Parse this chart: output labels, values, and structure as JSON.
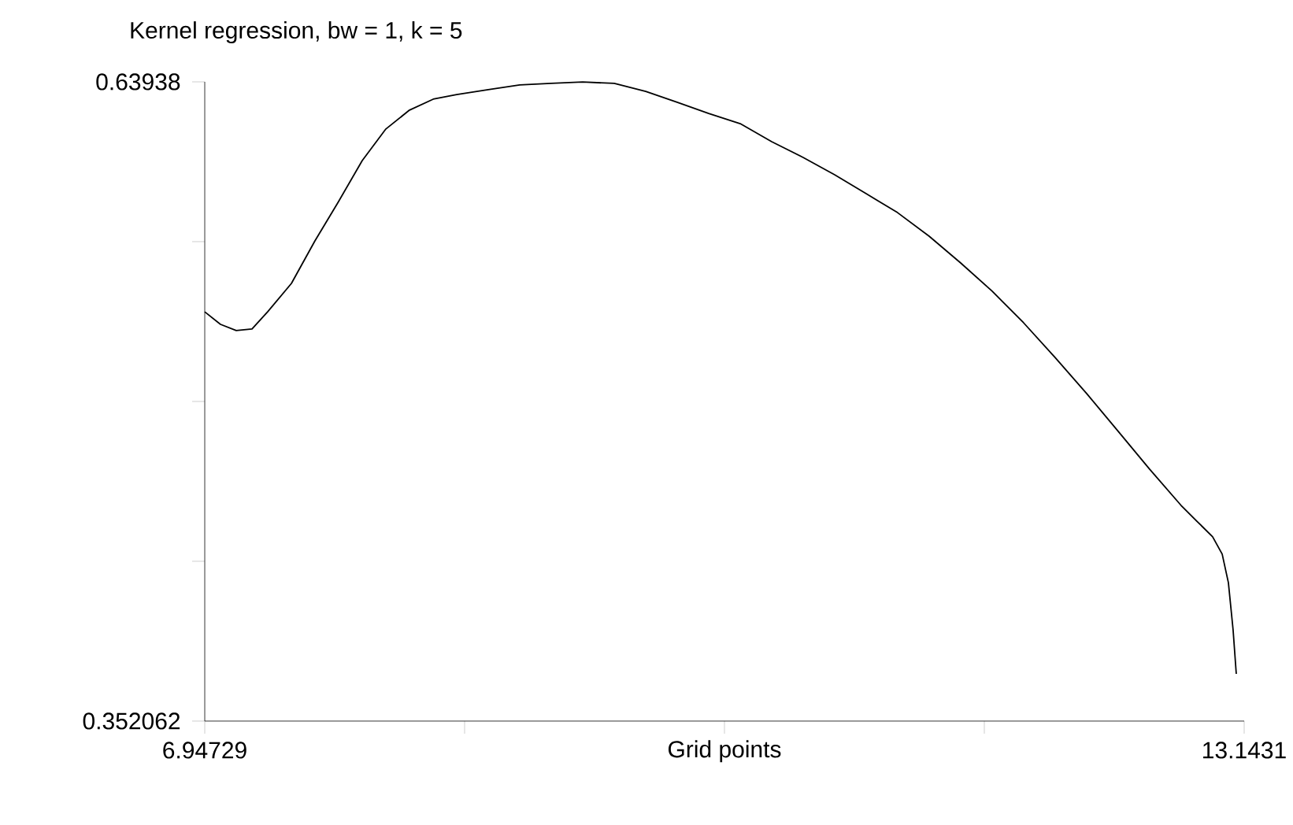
{
  "chart_data": {
    "type": "line",
    "title": "Kernel regression, bw = 1, k = 5",
    "xlabel": "Grid points",
    "x": [
      6.9473,
      7.041,
      7.135,
      7.229,
      7.323,
      7.464,
      7.604,
      7.745,
      7.886,
      8.027,
      8.168,
      8.309,
      8.449,
      8.637,
      8.825,
      9.012,
      9.2,
      9.388,
      9.576,
      9.763,
      9.951,
      10.139,
      10.327,
      10.514,
      10.702,
      10.89,
      11.077,
      11.265,
      11.453,
      11.641,
      11.828,
      12.016,
      12.204,
      12.392,
      12.579,
      12.767,
      12.861,
      12.955,
      13.012,
      13.049,
      13.077,
      13.096
    ],
    "series": [
      {
        "color": "#000000",
        "values": [
          0.536,
          0.5304,
          0.5276,
          0.5283,
          0.5361,
          0.5488,
          0.5679,
          0.5856,
          0.604,
          0.6182,
          0.6267,
          0.6316,
          0.6337,
          0.6359,
          0.638,
          0.6387,
          0.6393,
          0.6387,
          0.6351,
          0.6302,
          0.6252,
          0.6206,
          0.6125,
          0.6054,
          0.5976,
          0.5891,
          0.5806,
          0.57,
          0.558,
          0.5453,
          0.5311,
          0.5155,
          0.4993,
          0.4823,
          0.4653,
          0.449,
          0.4419,
          0.4349,
          0.4271,
          0.4143,
          0.3931,
          0.3733
        ]
      }
    ],
    "xlim": [
      6.94729,
      13.1431
    ],
    "xticks": [
      6.94729,
      {
        "value": 8.496243,
        "label": null
      },
      {
        "value": 10.0452,
        "label": null
      },
      {
        "value": 11.594158,
        "label": null
      },
      13.1431
    ],
    "ylim": [
      0.352062,
      0.63938
    ],
    "yticks": [
      0.352062,
      {
        "value": 0.4238915,
        "label": null
      },
      {
        "value": 0.495721,
        "label": null
      },
      {
        "value": 0.5675505,
        "label": null
      },
      0.63938
    ],
    "grid": false,
    "marker": "none",
    "line_style": "solid"
  }
}
